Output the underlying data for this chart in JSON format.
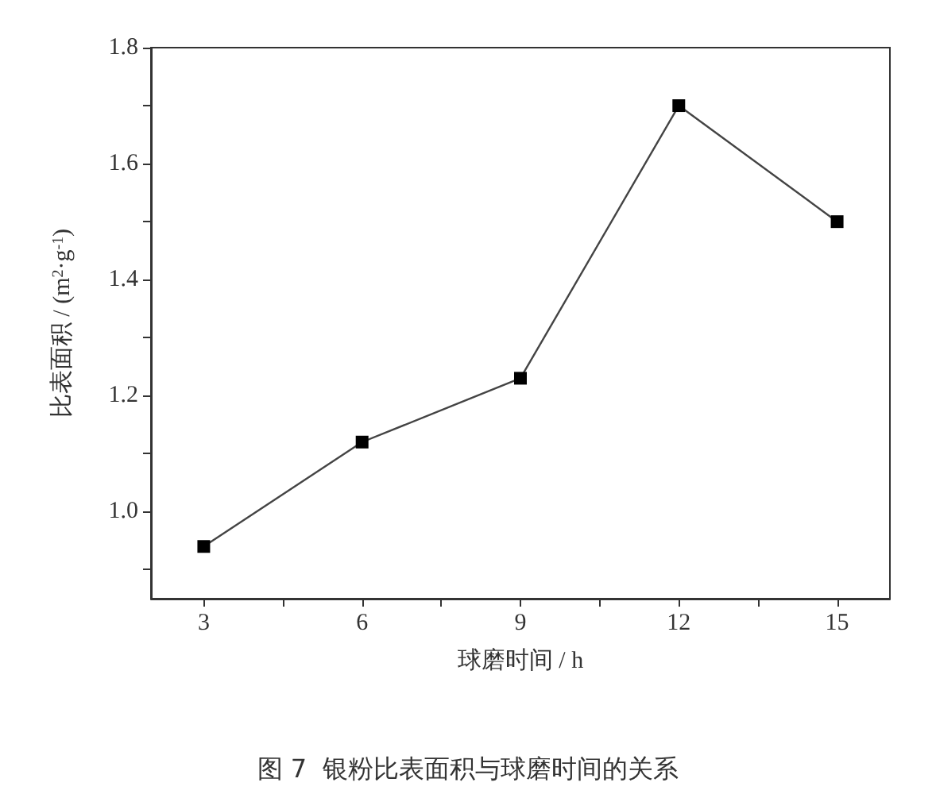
{
  "chart_data": {
    "type": "line",
    "xlabel": "球磨时间 / h",
    "ylabel": "比表面积 / (m$^{2}$·g$^{-1}$)",
    "x": [
      3,
      6,
      9,
      12,
      15
    ],
    "series": [
      {
        "color": "#000000",
        "values": [
          0.94,
          1.12,
          1.23,
          1.7,
          1.5
        ]
      }
    ],
    "xlim": [
      2,
      16
    ],
    "xticks": [
      3,
      {
        "value": 4.5,
        "label": null
      },
      6,
      {
        "value": 7.5,
        "label": null
      },
      9,
      {
        "value": 10.5,
        "label": null
      },
      12,
      {
        "value": 13.5,
        "label": null
      },
      15
    ],
    "ylim": [
      0.85,
      1.8
    ],
    "yticks": [
      {
        "value": 0.9,
        "label": null
      },
      {
        "value": 1.0,
        "label": "1.0"
      },
      {
        "value": 1.1,
        "label": null
      },
      {
        "value": 1.2,
        "label": "1.2"
      },
      {
        "value": 1.3,
        "label": null
      },
      {
        "value": 1.4,
        "label": "1.4"
      },
      {
        "value": 1.5,
        "label": null
      },
      {
        "value": 1.6,
        "label": "1.6"
      },
      {
        "value": 1.7,
        "label": null
      },
      {
        "value": 1.8,
        "label": "1.8"
      }
    ],
    "grid": false,
    "marker": "square",
    "line_style": "solid",
    "annotations": [
      "图 7  银粉比表面积与球磨时间的关系"
    ]
  }
}
